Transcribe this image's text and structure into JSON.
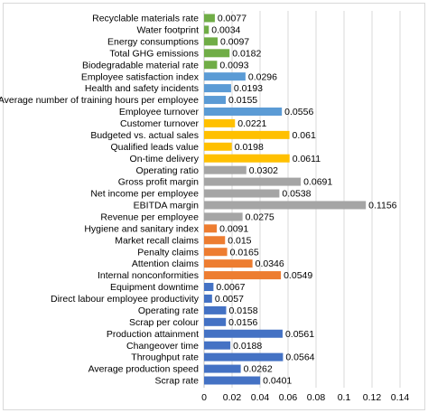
{
  "chart_data": {
    "type": "bar",
    "orientation": "horizontal",
    "title": "",
    "xlabel": "",
    "ylabel": "",
    "xlim": [
      0,
      0.14
    ],
    "x_ticks": [
      "0",
      "0.02",
      "0.04",
      "0.06",
      "0.08",
      "0.1",
      "0.12",
      "0.14"
    ],
    "grid": "vertical gridlines",
    "legend": "none",
    "colors": {
      "green": "#70ad47",
      "blue_light": "#5b9bd5",
      "yellow": "#ffc000",
      "gray": "#a5a5a5",
      "orange": "#ed7d31",
      "blue_dark": "#4472c4"
    },
    "bars": [
      {
        "category": "Recyclable materials rate",
        "value": 0.0077,
        "label": "0.0077",
        "color": "#70ad47"
      },
      {
        "category": "Water footprint",
        "value": 0.0034,
        "label": "0.0034",
        "color": "#70ad47"
      },
      {
        "category": "Energy consumptions",
        "value": 0.0097,
        "label": "0.0097",
        "color": "#70ad47"
      },
      {
        "category": "Total GHG emissions",
        "value": 0.0182,
        "label": "0.0182",
        "color": "#70ad47"
      },
      {
        "category": "Biodegradable material rate",
        "value": 0.0093,
        "label": "0.0093",
        "color": "#70ad47"
      },
      {
        "category": "Employee satisfaction index",
        "value": 0.0296,
        "label": "0.0296",
        "color": "#5b9bd5"
      },
      {
        "category": "Health and safety incidents",
        "value": 0.0193,
        "label": "0.0193",
        "color": "#5b9bd5"
      },
      {
        "category": "Average number of training hours per employee",
        "value": 0.0155,
        "label": "0.0155",
        "color": "#5b9bd5"
      },
      {
        "category": "Employee turnover",
        "value": 0.0556,
        "label": "0.0556",
        "color": "#5b9bd5"
      },
      {
        "category": "Customer turnover",
        "value": 0.0221,
        "label": "0.0221",
        "color": "#ffc000"
      },
      {
        "category": "Budgeted vs. actual sales",
        "value": 0.061,
        "label": "0.061",
        "color": "#ffc000"
      },
      {
        "category": "Qualified leads value",
        "value": 0.0198,
        "label": "0.0198",
        "color": "#ffc000"
      },
      {
        "category": "On-time delivery",
        "value": 0.0611,
        "label": "0.0611",
        "color": "#ffc000"
      },
      {
        "category": "Operating ratio",
        "value": 0.0302,
        "label": "0.0302",
        "color": "#a5a5a5"
      },
      {
        "category": "Gross profit margin",
        "value": 0.0691,
        "label": "0.0691",
        "color": "#a5a5a5"
      },
      {
        "category": "Net income per employee",
        "value": 0.0538,
        "label": "0.0538",
        "color": "#a5a5a5"
      },
      {
        "category": "EBITDA margin",
        "value": 0.1156,
        "label": "0.1156",
        "color": "#a5a5a5"
      },
      {
        "category": "Revenue per employee",
        "value": 0.0275,
        "label": "0.0275",
        "color": "#a5a5a5"
      },
      {
        "category": "Hygiene and sanitary index",
        "value": 0.0091,
        "label": "0.0091",
        "color": "#ed7d31"
      },
      {
        "category": "Market recall claims",
        "value": 0.015,
        "label": "0.015",
        "color": "#ed7d31"
      },
      {
        "category": "Penalty claims",
        "value": 0.0165,
        "label": "0.0165",
        "color": "#ed7d31"
      },
      {
        "category": "Attention claims",
        "value": 0.0346,
        "label": "0.0346",
        "color": "#ed7d31"
      },
      {
        "category": "Internal nonconformities",
        "value": 0.0549,
        "label": "0.0549",
        "color": "#ed7d31"
      },
      {
        "category": "Equipment downtime",
        "value": 0.0067,
        "label": "0.0067",
        "color": "#4472c4"
      },
      {
        "category": "Direct labour employee productivity",
        "value": 0.0057,
        "label": "0.0057",
        "color": "#4472c4"
      },
      {
        "category": "Operating rate",
        "value": 0.0158,
        "label": "0.0158",
        "color": "#4472c4"
      },
      {
        "category": "Scrap per colour",
        "value": 0.0156,
        "label": "0.0156",
        "color": "#4472c4"
      },
      {
        "category": "Production attainment",
        "value": 0.0561,
        "label": "0.0561",
        "color": "#4472c4"
      },
      {
        "category": "Changeover time",
        "value": 0.0188,
        "label": "0.0188",
        "color": "#4472c4"
      },
      {
        "category": "Throughput rate",
        "value": 0.0564,
        "label": "0.0564",
        "color": "#4472c4"
      },
      {
        "category": "Average production speed",
        "value": 0.0262,
        "label": "0.0262",
        "color": "#4472c4"
      },
      {
        "category": "Scrap rate",
        "value": 0.0401,
        "label": "0.0401",
        "color": "#4472c4"
      }
    ]
  }
}
